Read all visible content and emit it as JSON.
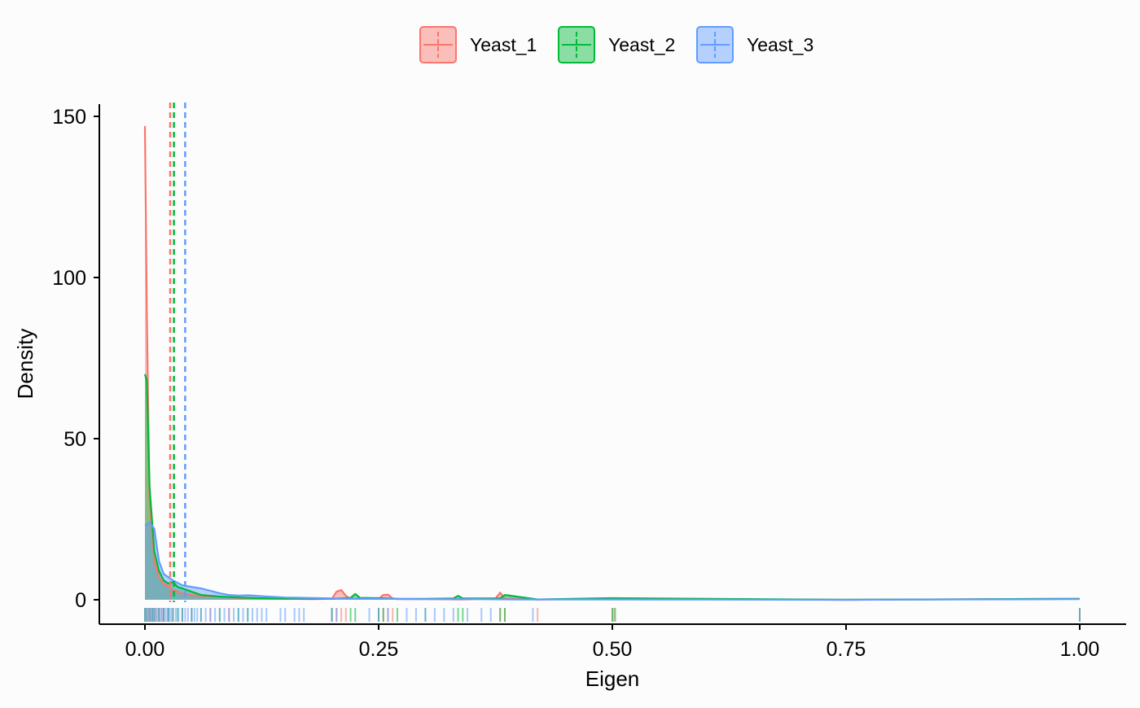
{
  "chart_data": {
    "type": "area",
    "title": "",
    "xlabel": "Eigen",
    "ylabel": "Density",
    "xlim": [
      -0.05,
      1.05
    ],
    "ylim": [
      -7,
      155
    ],
    "x_ticks": [
      0.0,
      0.25,
      0.5,
      0.75,
      1.0
    ],
    "x_tick_labels": [
      "0.00",
      "0.25",
      "0.50",
      "0.75",
      "1.00"
    ],
    "y_ticks": [
      0,
      50,
      100,
      150
    ],
    "y_tick_labels": [
      "0",
      "50",
      "100",
      "150"
    ],
    "grid": false,
    "legend": {
      "position": "top",
      "entries": [
        "Yeast_1",
        "Yeast_2",
        "Yeast_3"
      ]
    },
    "series": [
      {
        "name": "Yeast_1",
        "line_color": "#F8766D",
        "fill_color": "#F8766D",
        "mean": 0.027,
        "density_x": [
          0,
          0.002,
          0.005,
          0.01,
          0.015,
          0.02,
          0.03,
          0.04,
          0.05,
          0.06,
          0.08,
          0.1,
          0.12,
          0.15,
          0.18,
          0.2,
          0.205,
          0.21,
          0.215,
          0.22,
          0.25,
          0.255,
          0.26,
          0.265,
          0.27,
          0.3,
          0.34,
          0.375,
          0.38,
          0.385,
          0.42,
          0.5,
          0.75,
          1.0
        ],
        "density_y": [
          147,
          90,
          30,
          12,
          7,
          5,
          3,
          2,
          1.5,
          1.2,
          0.9,
          0.6,
          0.4,
          0.3,
          0.2,
          0.3,
          2.5,
          3,
          1.2,
          0.3,
          0.3,
          1.5,
          1.6,
          0.4,
          0.2,
          0.2,
          0.1,
          0.4,
          2.2,
          0.4,
          0.1,
          0.3,
          0,
          0.3
        ],
        "rug": [
          0,
          0.002,
          0.004,
          0.006,
          0.008,
          0.01,
          0.012,
          0.015,
          0.018,
          0.02,
          0.025,
          0.03,
          0.04,
          0.05,
          0.07,
          0.09,
          0.2,
          0.205,
          0.21,
          0.215,
          0.25,
          0.255,
          0.26,
          0.265,
          0.38,
          0.385,
          0.42,
          0.5,
          0.502,
          1.0
        ]
      },
      {
        "name": "Yeast_2",
        "line_color": "#00BA38",
        "fill_color": "#00BA38",
        "mean": 0.031,
        "density_x": [
          0,
          0.002,
          0.005,
          0.01,
          0.015,
          0.02,
          0.025,
          0.03,
          0.035,
          0.04,
          0.045,
          0.05,
          0.06,
          0.08,
          0.1,
          0.12,
          0.15,
          0.2,
          0.22,
          0.225,
          0.23,
          0.25,
          0.27,
          0.3,
          0.33,
          0.335,
          0.34,
          0.38,
          0.385,
          0.42,
          0.5,
          0.75,
          1.0
        ],
        "density_y": [
          70,
          68,
          35,
          15,
          9,
          6,
          5,
          5.5,
          4,
          3.5,
          3,
          2.5,
          1.5,
          1,
          0.7,
          0.5,
          0.3,
          0.3,
          0.6,
          1.8,
          0.6,
          0.5,
          0.3,
          0.3,
          0.4,
          1.2,
          0.4,
          0.4,
          1.5,
          0.1,
          0.5,
          0,
          0.3
        ],
        "rug": [
          0,
          0.002,
          0.005,
          0.008,
          0.01,
          0.015,
          0.02,
          0.025,
          0.03,
          0.035,
          0.04,
          0.05,
          0.06,
          0.08,
          0.1,
          0.11,
          0.2,
          0.22,
          0.225,
          0.25,
          0.255,
          0.27,
          0.3,
          0.335,
          0.34,
          0.38,
          0.385,
          0.5,
          0.503,
          1.0
        ]
      },
      {
        "name": "Yeast_3",
        "line_color": "#619CFF",
        "fill_color": "#619CFF",
        "mean": 0.043,
        "density_x": [
          0,
          0.005,
          0.01,
          0.015,
          0.02,
          0.03,
          0.04,
          0.05,
          0.06,
          0.07,
          0.08,
          0.09,
          0.1,
          0.11,
          0.12,
          0.13,
          0.15,
          0.17,
          0.2,
          0.25,
          0.3,
          0.35,
          0.4,
          0.42,
          0.5,
          0.75,
          1.0
        ],
        "density_y": [
          23,
          24,
          22,
          12,
          8,
          6,
          4.5,
          4,
          3.5,
          2.8,
          2,
          1.5,
          1.3,
          1.4,
          1.2,
          1,
          0.7,
          0.6,
          0.4,
          0.3,
          0.2,
          0.2,
          0.1,
          0.1,
          0.1,
          0,
          0.2
        ],
        "rug": [
          0,
          0.002,
          0.004,
          0.006,
          0.008,
          0.01,
          0.012,
          0.014,
          0.016,
          0.018,
          0.02,
          0.022,
          0.024,
          0.026,
          0.028,
          0.03,
          0.033,
          0.036,
          0.04,
          0.043,
          0.046,
          0.05,
          0.053,
          0.056,
          0.06,
          0.065,
          0.07,
          0.075,
          0.08,
          0.085,
          0.09,
          0.095,
          0.1,
          0.105,
          0.11,
          0.115,
          0.12,
          0.125,
          0.13,
          0.145,
          0.15,
          0.16,
          0.165,
          0.17,
          0.2,
          0.205,
          0.24,
          0.25,
          0.26,
          0.28,
          0.29,
          0.3,
          0.31,
          0.32,
          0.33,
          0.345,
          0.36,
          0.37,
          0.415,
          1.0
        ]
      }
    ]
  }
}
